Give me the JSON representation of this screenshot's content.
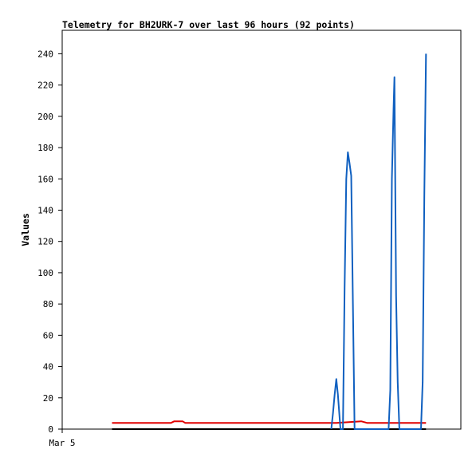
{
  "chart_data": {
    "type": "line",
    "title": "Telemetry for BH2URK-7 over last 96 hours (92 points)",
    "ylabel": "Values",
    "xlabel": "",
    "ylim": [
      0,
      255
    ],
    "yticks": [
      0,
      20,
      40,
      60,
      80,
      100,
      120,
      140,
      160,
      180,
      200,
      220,
      240
    ],
    "xlim": [
      0,
      96
    ],
    "xtick_labels": [
      {
        "x": 0,
        "label": "Mar 5"
      }
    ],
    "grid": false,
    "series": [
      {
        "color": "#000000",
        "x": [
          12.0,
          87.6
        ],
        "values": [
          0,
          0
        ]
      },
      {
        "color": "#e00000",
        "x": [
          12.0,
          26.2,
          27.0,
          29.0,
          29.6,
          66.0,
          72.0,
          73.4,
          87.6
        ],
        "values": [
          4,
          4,
          5,
          5,
          4,
          4,
          5,
          4,
          4
        ]
      },
      {
        "color": "#1060c0",
        "x": [
          64.8,
          65.2,
          65.6,
          66.0,
          66.4,
          67.0,
          67.6,
          68.0,
          68.4,
          68.8,
          69.2,
          69.6,
          70.4,
          70.8,
          71.2,
          71.6,
          72.4,
          78.6,
          79.0,
          79.4,
          79.8,
          80.0,
          80.4,
          80.8,
          81.2,
          86.4,
          86.8,
          87.2,
          87.6
        ],
        "values": [
          0,
          10,
          22,
          32,
          22,
          0,
          0,
          90,
          160,
          177,
          170,
          162,
          0,
          0,
          0,
          0,
          0,
          0,
          25,
          160,
          205,
          225,
          85,
          30,
          0,
          0,
          30,
          150,
          240
        ]
      }
    ]
  }
}
